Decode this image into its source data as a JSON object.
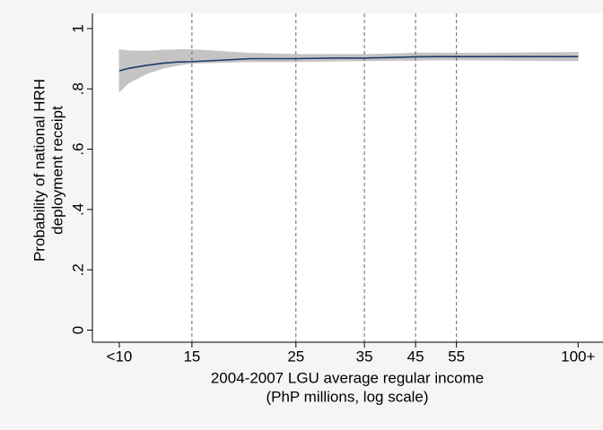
{
  "chart_data": {
    "type": "line",
    "y_label_lines": [
      "Probability of national HRH",
      "deployment receipt"
    ],
    "x_label_lines": [
      "2004-2007 LGU average regular income",
      "(PhP millions, log scale)"
    ],
    "x_log_scale": true,
    "xlim": [
      9.2,
      113
    ],
    "ylim": [
      -0.04,
      1.05
    ],
    "xticks": [
      {
        "value": 10.5,
        "label": "<10"
      },
      15,
      25,
      35,
      45,
      55,
      {
        "value": 100,
        "label": "100+"
      }
    ],
    "yticks": [
      0,
      {
        "value": 0.2,
        "label": ".2"
      },
      {
        "value": 0.4,
        "label": ".4"
      },
      {
        "value": 0.6,
        "label": ".6"
      },
      {
        "value": 0.8,
        "label": ".8"
      },
      1
    ],
    "vlines": [
      15,
      25,
      35,
      45,
      55
    ],
    "band_color": "#c4c4c4",
    "line_color": "#1a3a6c",
    "x": [
      10.5,
      11,
      12,
      13,
      14,
      15,
      20,
      25,
      30,
      35,
      40,
      45,
      50,
      55,
      70,
      100
    ],
    "values": [
      0.86,
      0.868,
      0.878,
      0.885,
      0.889,
      0.89,
      0.9,
      0.9,
      0.902,
      0.902,
      0.904,
      0.906,
      0.907,
      0.907,
      0.907,
      0.907
    ],
    "lower": [
      0.79,
      0.82,
      0.85,
      0.868,
      0.878,
      0.885,
      0.89,
      0.89,
      0.892,
      0.893,
      0.894,
      0.895,
      0.896,
      0.896,
      0.895,
      0.893
    ],
    "upper": [
      0.93,
      0.926,
      0.925,
      0.928,
      0.93,
      0.93,
      0.918,
      0.914,
      0.914,
      0.914,
      0.916,
      0.919,
      0.919,
      0.918,
      0.919,
      0.921
    ]
  }
}
